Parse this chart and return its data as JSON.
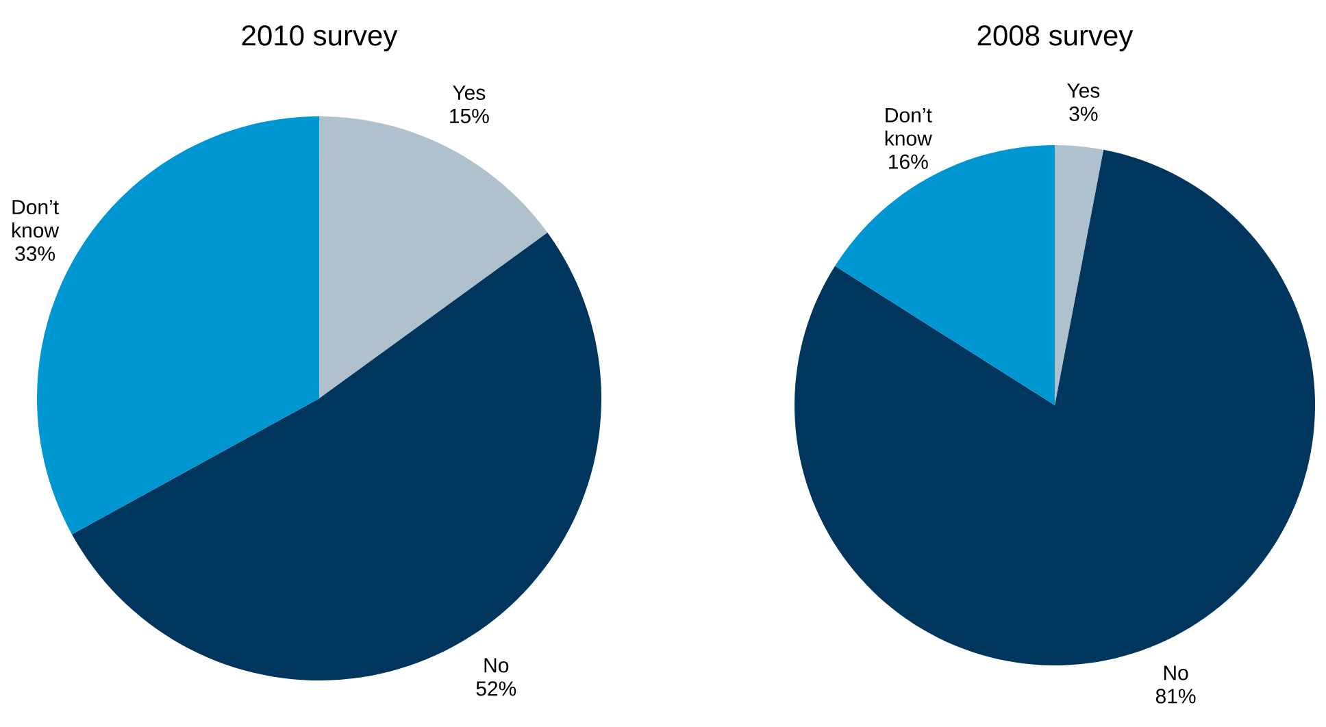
{
  "chart_data": [
    {
      "type": "pie",
      "title": "2010 survey",
      "categories": [
        "Yes",
        "No",
        "Don’t know"
      ],
      "values": [
        15,
        52,
        33
      ],
      "value_labels": [
        "15%",
        "52%",
        "33%"
      ],
      "colors": [
        "#b0c1ce",
        "#00365e",
        "#0096d2"
      ]
    },
    {
      "type": "pie",
      "title": "2008 survey",
      "categories": [
        "Yes",
        "No",
        "Don’t know"
      ],
      "values": [
        3,
        81,
        16
      ],
      "value_labels": [
        "3%",
        "81%",
        "16%"
      ],
      "colors": [
        "#b0c1ce",
        "#00365e",
        "#0096d2"
      ]
    }
  ]
}
